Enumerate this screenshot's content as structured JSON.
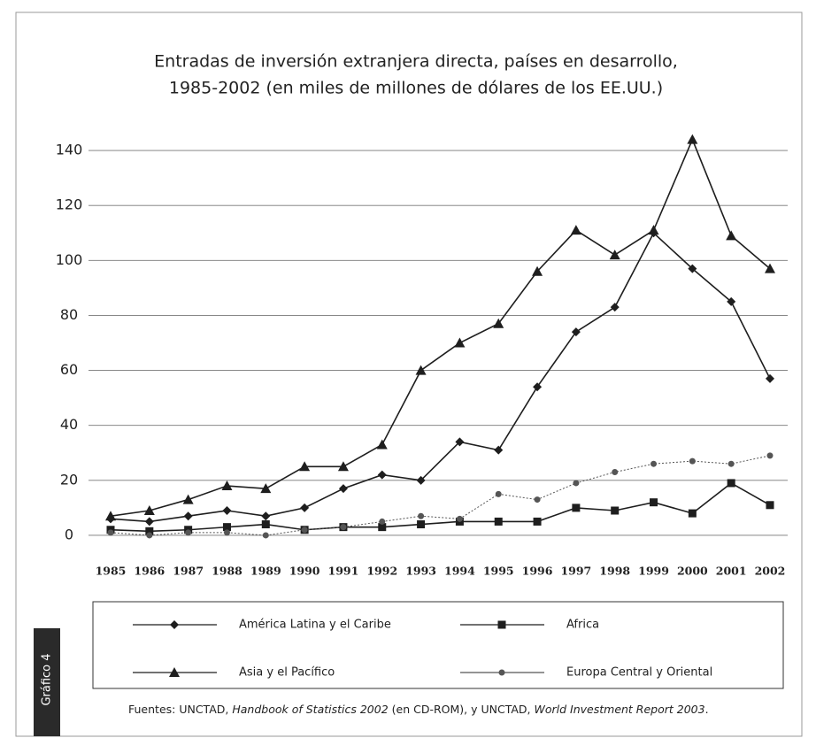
{
  "chart_data": {
    "type": "line",
    "title": [
      "Entradas de inversión extranjera directa, países en desarrollo,",
      "1985-2002 (en miles de millones de dólares de los EE.UU.)"
    ],
    "categories": [
      "1985",
      "1986",
      "1987",
      "1988",
      "1989",
      "1990",
      "1991",
      "1992",
      "1993",
      "1994",
      "1995",
      "1996",
      "1997",
      "1998",
      "1999",
      "2000",
      "2001",
      "2002"
    ],
    "series": [
      {
        "name": "América Latina y el Caribe",
        "color": "#1e1e1e",
        "marker": "diamond",
        "values": [
          6,
          5,
          7,
          9,
          7,
          10,
          17,
          22,
          20,
          34,
          31,
          54,
          74,
          83,
          110,
          97,
          85,
          57
        ]
      },
      {
        "name": "Africa",
        "color": "#1e1e1e",
        "marker": "square",
        "values": [
          2,
          1.5,
          2,
          3,
          4,
          2,
          3,
          3,
          4,
          5,
          5,
          5,
          10,
          9,
          12,
          8,
          19,
          11
        ]
      },
      {
        "name": "Asia y el Pacífico",
        "color": "#1e1e1e",
        "marker": "triangle",
        "values": [
          7,
          9,
          13,
          18,
          17,
          25,
          25,
          33,
          60,
          70,
          77,
          96,
          111,
          102,
          111,
          144,
          109,
          97
        ]
      },
      {
        "name": "Europa Central y Oriental",
        "color": "#555555",
        "marker": "circle",
        "values": [
          1,
          0,
          1,
          1,
          0,
          2,
          3,
          5,
          7,
          6,
          15,
          13,
          19,
          23,
          26,
          27,
          26,
          29
        ]
      }
    ],
    "ylim": [
      -6,
      150
    ],
    "yticks": [
      0,
      20,
      40,
      60,
      80,
      100,
      120,
      140
    ],
    "grid": true
  },
  "side_label": "Gráfico 4",
  "source": [
    "Fuentes: UNCTAD, ",
    "Handbook of Statistics 2002",
    " (en CD-ROM), y UNCTAD, ",
    "World Investment Report 2003",
    "."
  ]
}
